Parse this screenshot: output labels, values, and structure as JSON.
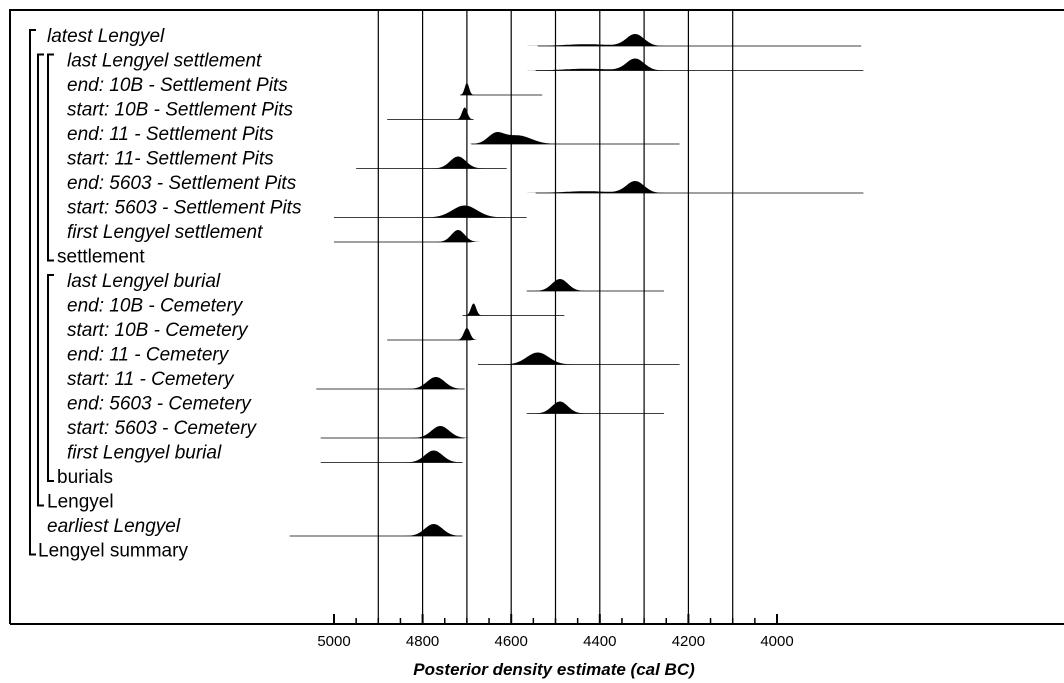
{
  "chart_data": {
    "type": "density-plot",
    "xlabel": "Posterior density estimate (cal BC)",
    "x_axis": {
      "range": [
        5000,
        4000
      ],
      "reversed": true,
      "major_ticks": [
        5000,
        4800,
        4600,
        4400,
        4200,
        4000
      ],
      "minor_step": 50
    },
    "reference_lines": [
      4900,
      4800,
      4700,
      4600,
      4500,
      4400,
      4300,
      4200,
      4100
    ],
    "rows": [
      {
        "label": "latest Lengyel",
        "italic": true,
        "indent": 1,
        "kind": "boundary",
        "peaks": [
          [
            4320,
            20,
            1.0
          ],
          [
            4430,
            50,
            0.15
          ]
        ],
        "range": [
          4540,
          3810
        ]
      },
      {
        "label": "last Lengyel settlement",
        "italic": true,
        "indent": 3,
        "kind": "boundary",
        "peaks": [
          [
            4320,
            20,
            1.0
          ],
          [
            4430,
            50,
            0.15
          ]
        ],
        "range": [
          4545,
          3805
        ]
      },
      {
        "label": "end: 10B - Settlement Pits",
        "italic": true,
        "indent": 3,
        "kind": "boundary",
        "peaks": [
          [
            4700,
            5,
            1.0
          ]
        ],
        "range": [
          4715,
          4530
        ]
      },
      {
        "label": "start: 10B - Settlement Pits",
        "italic": true,
        "indent": 3,
        "kind": "boundary",
        "peaks": [
          [
            4705,
            6,
            1.0
          ]
        ],
        "range": [
          4880,
          4685
        ]
      },
      {
        "label": "end: 11 - Settlement Pits",
        "italic": true,
        "indent": 3,
        "kind": "boundary",
        "peaks": [
          [
            4635,
            18,
            0.9
          ],
          [
            4585,
            30,
            0.8
          ]
        ],
        "range": [
          4690,
          4220
        ]
      },
      {
        "label": "start: 11- Settlement Pits",
        "italic": true,
        "indent": 3,
        "kind": "boundary",
        "peaks": [
          [
            4720,
            18,
            1.0
          ]
        ],
        "range": [
          4950,
          4610
        ]
      },
      {
        "label": "end: 5603 - Settlement Pits",
        "italic": true,
        "indent": 3,
        "kind": "boundary",
        "peaks": [
          [
            4320,
            20,
            1.0
          ],
          [
            4430,
            50,
            0.15
          ]
        ],
        "range": [
          4545,
          3805
        ]
      },
      {
        "label": "start: 5603 - Settlement Pits",
        "italic": true,
        "indent": 3,
        "kind": "boundary",
        "peaks": [
          [
            4705,
            28,
            1.0
          ]
        ],
        "range": [
          5000,
          4565
        ]
      },
      {
        "label": "first Lengyel settlement",
        "italic": true,
        "indent": 3,
        "kind": "boundary",
        "peaks": [
          [
            4720,
            15,
            1.0
          ]
        ],
        "range": [
          5000,
          4690
        ]
      },
      {
        "label": "settlement",
        "italic": false,
        "indent": 2,
        "kind": "phase"
      },
      {
        "label": "last Lengyel burial",
        "italic": true,
        "indent": 3,
        "kind": "boundary",
        "peaks": [
          [
            4490,
            18,
            1.0
          ]
        ],
        "range": [
          4565,
          4255
        ]
      },
      {
        "label": "end: 10B - Cemetery",
        "italic": true,
        "indent": 3,
        "kind": "boundary",
        "peaks": [
          [
            4685,
            6,
            1.0
          ]
        ],
        "range": [
          4710,
          4480
        ]
      },
      {
        "label": "start: 10B - Cemetery",
        "italic": true,
        "indent": 3,
        "kind": "boundary",
        "peaks": [
          [
            4700,
            7,
            1.0
          ]
        ],
        "range": [
          4880,
          4690
        ]
      },
      {
        "label": "end: 11 - Cemetery",
        "italic": true,
        "indent": 3,
        "kind": "boundary",
        "peaks": [
          [
            4540,
            25,
            1.0
          ]
        ],
        "range": [
          4675,
          4220
        ]
      },
      {
        "label": "start: 11 - Cemetery",
        "italic": true,
        "indent": 3,
        "kind": "boundary",
        "peaks": [
          [
            4770,
            20,
            1.0
          ]
        ],
        "range": [
          5040,
          4705
        ]
      },
      {
        "label": "end: 5603 - Cemetery",
        "italic": true,
        "indent": 3,
        "kind": "boundary",
        "peaks": [
          [
            4490,
            18,
            1.0
          ]
        ],
        "range": [
          4565,
          4255
        ]
      },
      {
        "label": "start: 5603 - Cemetery",
        "italic": true,
        "indent": 3,
        "kind": "boundary",
        "peaks": [
          [
            4760,
            20,
            1.0
          ]
        ],
        "range": [
          5030,
          4705
        ]
      },
      {
        "label": "first Lengyel burial",
        "italic": true,
        "indent": 3,
        "kind": "boundary",
        "peaks": [
          [
            4775,
            20,
            1.0
          ]
        ],
        "range": [
          5030,
          4710
        ]
      },
      {
        "label": "burials",
        "italic": false,
        "indent": 2,
        "kind": "phase"
      },
      {
        "label": "Lengyel",
        "italic": false,
        "indent": 1,
        "kind": "phase"
      },
      {
        "label": "earliest Lengyel",
        "italic": true,
        "indent": 1,
        "kind": "boundary",
        "peaks": [
          [
            4775,
            20,
            1.0
          ]
        ],
        "range": [
          5100,
          4710
        ]
      },
      {
        "label": "Lengyel summary",
        "italic": false,
        "indent": 0,
        "kind": "phase"
      }
    ]
  }
}
